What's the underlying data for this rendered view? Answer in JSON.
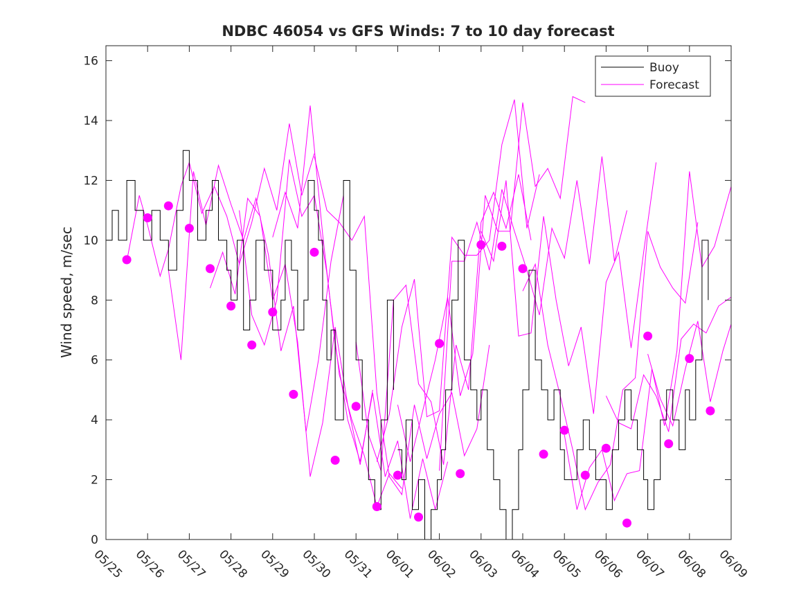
{
  "chart_data": {
    "type": "line",
    "title": "NDBC 46054 vs GFS Winds: 7 to 10 day forecast",
    "xlabel": "",
    "ylabel": "Wind speed, m/sec",
    "x_ticks": [
      "05/25",
      "05/26",
      "05/27",
      "05/28",
      "05/29",
      "05/30",
      "05/31",
      "06/01",
      "06/02",
      "06/03",
      "06/04",
      "06/05",
      "06/06",
      "06/07",
      "06/08",
      "06/09"
    ],
    "xlim": [
      0,
      15
    ],
    "ylim": [
      0,
      16.5
    ],
    "y_ticks": [
      0,
      2,
      4,
      6,
      8,
      10,
      12,
      14,
      16
    ],
    "grid": false,
    "legend": {
      "placement": "top-right",
      "entries": [
        "Buoy",
        "Forecast"
      ]
    },
    "colors": {
      "buoy": "#000000",
      "forecast": "#ff00ff",
      "axes": "#262626"
    },
    "x_units": "days since 05/25",
    "series": [
      {
        "name": "Buoy",
        "x": [
          0,
          0.15,
          0.3,
          0.5,
          0.7,
          0.9,
          1.1,
          1.3,
          1.5,
          1.7,
          1.85,
          2.0,
          2.2,
          2.4,
          2.55,
          2.7,
          2.9,
          3.0,
          3.15,
          3.3,
          3.45,
          3.6,
          3.8,
          4.0,
          4.2,
          4.3,
          4.45,
          4.6,
          4.75,
          4.85,
          5.0,
          5.1,
          5.2,
          5.3,
          5.4,
          5.5,
          5.7,
          5.85,
          6.0,
          6.15,
          6.3,
          6.45,
          6.6,
          6.75,
          6.9,
          7.0,
          7.1,
          7.2,
          7.35,
          7.5,
          7.65,
          7.8,
          7.95,
          8.05,
          8.15,
          8.3,
          8.45,
          8.6,
          8.75,
          8.9,
          9.0,
          9.15,
          9.3,
          9.45,
          9.6,
          9.75,
          9.9,
          10.0,
          10.15,
          10.3,
          10.45,
          10.6,
          10.75,
          10.9,
          11.0,
          11.15,
          11.3,
          11.45,
          11.6,
          11.75,
          11.9,
          12.0,
          12.15,
          12.3,
          12.45,
          12.6,
          12.75,
          12.9,
          13.0,
          13.15,
          13.3,
          13.45,
          13.6,
          13.75,
          13.9,
          14.0,
          14.15,
          14.3,
          14.45
        ],
        "values": [
          10,
          11,
          10,
          12,
          11,
          10,
          11,
          10,
          9,
          11,
          13,
          12,
          10,
          11,
          12,
          10,
          9,
          8,
          10,
          7,
          8,
          10,
          9,
          7,
          8,
          10,
          9,
          7,
          8,
          12,
          11,
          10,
          8,
          6,
          7,
          4,
          12,
          9,
          6,
          4,
          2,
          1,
          4,
          8,
          5,
          3,
          2,
          4,
          1,
          2,
          0,
          1,
          2,
          3,
          5,
          8,
          10,
          6,
          5,
          4,
          5,
          3,
          2,
          1,
          0,
          1,
          3,
          5,
          9,
          6,
          5,
          4,
          5,
          3,
          2,
          2,
          3,
          4,
          3,
          2,
          2,
          1,
          3,
          4,
          5,
          4,
          3,
          2,
          1,
          2,
          4,
          5,
          4,
          3,
          5,
          4,
          6,
          10,
          8
        ],
        "line_break_x": 7.0
      },
      {
        "name": "Forecast",
        "x": [
          0.5,
          0.8,
          1.0,
          1.3,
          1.5,
          1.8,
          2.0,
          2.3,
          2.6,
          2.9,
          3.2,
          3.5,
          3.8,
          4.1,
          4.4,
          4.7,
          5.0
        ],
        "values": [
          9.3,
          11.5,
          10.5,
          8.8,
          9.7,
          11.8,
          12.6,
          10.9,
          11.8,
          10.8,
          9.2,
          10.6,
          12.4,
          11.0,
          13.9,
          11.5,
          12.9
        ]
      },
      {
        "name": "Forecast",
        "x": [
          1.5,
          1.8,
          2.1,
          2.4,
          2.7,
          3.0,
          3.3,
          3.6,
          3.9,
          4.2,
          4.5,
          4.8,
          5.1,
          5.4,
          5.7
        ],
        "values": [
          9.0,
          6.0,
          12.3,
          10.5,
          12.5,
          11.2,
          10.0,
          11.4,
          9.5,
          6.3,
          7.8,
          3.6,
          6.0,
          9.3,
          11.5
        ]
      },
      {
        "name": "Forecast",
        "x": [
          2.5,
          2.8,
          3.1,
          3.4,
          3.7,
          4.0,
          4.3,
          4.6,
          4.9,
          5.2,
          5.5,
          5.8,
          6.1,
          6.4
        ],
        "values": [
          8.4,
          9.6,
          8.2,
          11.4,
          10.8,
          8.0,
          9.2,
          6.6,
          2.1,
          3.9,
          7.1,
          4.5,
          2.5,
          5.0
        ]
      },
      {
        "name": "Forecast",
        "x": [
          3.2,
          3.5,
          3.8,
          4.1,
          4.4,
          4.7,
          5.0,
          5.3,
          5.6,
          5.9,
          6.2,
          6.5,
          6.8,
          7.1
        ],
        "values": [
          11.0,
          7.5,
          6.5,
          8.0,
          12.7,
          10.8,
          11.5,
          8.9,
          5.5,
          4.0,
          2.8,
          1.1,
          2.2,
          1.7
        ]
      },
      {
        "name": "Forecast",
        "x": [
          4.0,
          4.3,
          4.6,
          4.9,
          5.2,
          5.5,
          5.8,
          6.1,
          6.4,
          6.7,
          7.0,
          7.3,
          7.6,
          7.9,
          8.2
        ],
        "values": [
          10.1,
          11.6,
          10.4,
          14.5,
          10.2,
          6.5,
          4.0,
          2.6,
          4.9,
          2.1,
          3.3,
          0.7,
          2.7,
          1.0,
          2.6
        ]
      },
      {
        "name": "Forecast",
        "x": [
          5.0,
          5.3,
          5.6,
          5.9,
          6.2,
          6.5,
          6.8,
          7.1,
          7.4,
          7.7,
          8.0,
          8.3,
          8.6,
          8.9,
          9.2
        ],
        "values": [
          12.8,
          11.0,
          10.6,
          10.0,
          10.8,
          4.9,
          2.1,
          1.5,
          4.5,
          2.7,
          4.2,
          4.9,
          2.8,
          3.7,
          6.5
        ]
      },
      {
        "name": "Forecast",
        "x": [
          6.0,
          6.3,
          6.6,
          6.9,
          7.2,
          7.5,
          7.8,
          8.1,
          8.4,
          8.7,
          9.0,
          9.3,
          9.6,
          9.9,
          10.2
        ],
        "values": [
          6.6,
          3.5,
          2.3,
          8.0,
          8.5,
          5.2,
          4.6,
          2.5,
          6.5,
          5.0,
          10.6,
          11.6,
          10.4,
          12.2,
          10.0
        ]
      },
      {
        "name": "Forecast",
        "x": [
          6.5,
          6.8,
          7.1,
          7.4,
          7.7,
          8.0,
          8.3,
          8.6,
          8.9,
          9.2,
          9.5,
          9.8,
          10.1,
          10.4
        ],
        "values": [
          2.6,
          4.2,
          7.1,
          8.7,
          4.1,
          4.3,
          10.1,
          9.5,
          9.5,
          10.0,
          13.2,
          14.7,
          10.4,
          12.2
        ]
      },
      {
        "name": "Forecast",
        "x": [
          7.0,
          7.3,
          7.6,
          7.9,
          8.2,
          8.5,
          8.8,
          9.1,
          9.4,
          9.7,
          10.0,
          10.3,
          10.6,
          10.9,
          11.2,
          11.5
        ],
        "values": [
          4.5,
          2.6,
          4.3,
          6.0,
          8.1,
          4.8,
          6.2,
          11.5,
          10.3,
          10.3,
          14.6,
          11.8,
          12.4,
          11.4,
          14.8,
          14.6
        ]
      },
      {
        "name": "Forecast",
        "x": [
          8.0,
          8.3,
          8.6,
          8.9,
          9.2,
          9.5,
          9.8,
          10.1,
          10.4,
          10.7,
          11.0,
          11.3,
          11.6,
          11.9,
          12.2,
          12.5
        ],
        "values": [
          2.3,
          9.3,
          9.3,
          10.6,
          9.0,
          11.7,
          10.3,
          9.0,
          7.5,
          10.4,
          9.4,
          12.0,
          9.2,
          12.8,
          9.3,
          11.0
        ]
      },
      {
        "name": "Forecast",
        "x": [
          9.0,
          9.3,
          9.6,
          9.9,
          10.2,
          10.5,
          10.8,
          11.1,
          11.4,
          11.7,
          12.0,
          12.3,
          12.6,
          12.9,
          13.2
        ],
        "values": [
          10.3,
          9.3,
          12.0,
          6.8,
          6.9,
          10.8,
          8.0,
          5.8,
          7.1,
          4.2,
          8.6,
          9.6,
          6.4,
          9.6,
          12.6
        ]
      },
      {
        "name": "Forecast",
        "x": [
          10.0,
          10.3,
          10.6,
          10.9,
          11.2,
          11.5,
          11.8,
          12.1,
          12.4,
          12.7,
          13.0,
          13.3,
          13.6,
          13.9,
          14.2
        ],
        "values": [
          8.3,
          9.2,
          6.5,
          4.8,
          3.0,
          1.0,
          1.9,
          2.5,
          5.0,
          5.4,
          10.3,
          9.1,
          8.4,
          7.9,
          10.6
        ]
      },
      {
        "name": "Forecast",
        "x": [
          11.0,
          11.3,
          11.6,
          11.9,
          12.2,
          12.5,
          12.8,
          13.1,
          13.4,
          13.7,
          14.0,
          14.3,
          14.6,
          15.0
        ],
        "values": [
          3.5,
          1.0,
          2.4,
          3.0,
          1.3,
          2.2,
          2.3,
          5.7,
          3.8,
          6.3,
          12.3,
          9.1,
          9.8,
          11.8
        ]
      },
      {
        "name": "Forecast",
        "x": [
          12.0,
          12.3,
          12.6,
          12.9,
          13.2,
          13.5,
          13.8,
          14.1,
          14.4,
          14.7,
          15.0
        ],
        "values": [
          4.8,
          3.9,
          3.7,
          5.5,
          4.8,
          3.6,
          6.7,
          7.2,
          6.9,
          7.8,
          8.1
        ]
      },
      {
        "name": "Forecast",
        "x": [
          13.0,
          13.3,
          13.6,
          13.9,
          14.2,
          14.5,
          14.8,
          15.0
        ],
        "values": [
          6.2,
          4.7,
          3.8,
          5.7,
          7.3,
          4.6,
          6.3,
          7.2
        ]
      }
    ],
    "markers": {
      "name": "Forecast",
      "x": [
        0.5,
        1.0,
        1.5,
        2.0,
        2.5,
        3.0,
        3.5,
        4.0,
        4.5,
        5.0,
        5.5,
        6.0,
        6.5,
        7.0,
        7.5,
        8.0,
        8.5,
        9.0,
        9.5,
        10.0,
        10.5,
        11.0,
        11.5,
        12.0,
        12.5,
        13.0,
        13.5,
        14.0,
        14.5
      ],
      "values": [
        9.35,
        10.75,
        11.15,
        10.4,
        9.05,
        7.8,
        6.5,
        7.6,
        4.85,
        9.6,
        2.65,
        4.45,
        1.1,
        2.15,
        0.75,
        6.55,
        2.2,
        9.85,
        9.8,
        9.05,
        2.85,
        3.65,
        2.15,
        3.05,
        0.55,
        6.8,
        3.2,
        6.05,
        4.3
      ]
    }
  }
}
